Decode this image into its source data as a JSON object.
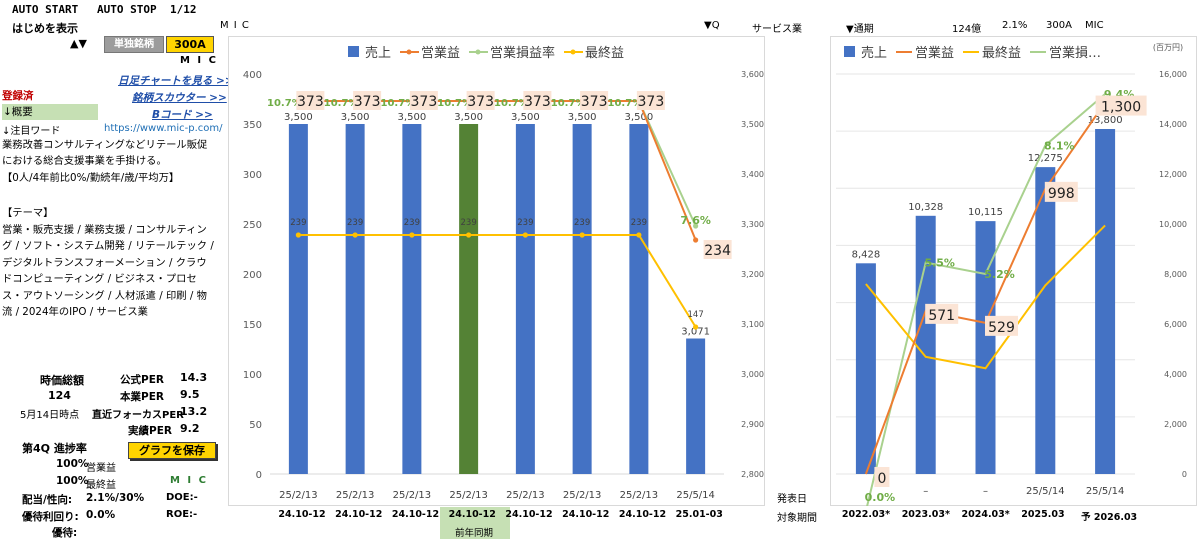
{
  "top": {
    "auto_start": "AUTO START",
    "auto_stop": "AUTO STOP",
    "page_counter": "1/12",
    "show_intro": "はじめを表示",
    "company_code_header": "M I C",
    "updown_arrows": "▲▼",
    "single_stock_label": "単独銘柄",
    "ticker": "300A",
    "company_name": "M I C",
    "q_marker": "▼Q",
    "sector": "サービス業",
    "period_marker": "▼通期",
    "market_cap": "124億",
    "ratio": "2.1%",
    "ticker2": "300A",
    "name2": "MIC"
  },
  "links": {
    "daily_chart": "日足チャートを見る >>",
    "scouter": "銘柄スカウター >>",
    "bcode": "Bコード >>"
  },
  "left": {
    "registered": "登録済",
    "summary": "↓概要",
    "attention": "↓注目ワード",
    "url": "https://www.mic-p.com/",
    "description": "業務改善コンサルティングなどリテール販促における総合支援事業を手掛ける。",
    "employees": "【0人/4年前比0%/勤続年/歳/平均万】",
    "theme_header": "【テーマ】",
    "themes": "営業・販売支援 / 業務支援 / コンサルティング / ソフト・システム開発 / リテールテック / デジタルトランスフォーメーション / クラウドコンピューティング / ビジネス・プロセス・アウトソーシング / 人材派遣 / 印刷 / 物流 / 2024年のIPO / サービス業"
  },
  "metrics": {
    "market_cap_label": "時価総額",
    "market_cap_value": "124",
    "date_label": "5月14日時点",
    "per_official_label": "公式PER",
    "per_official": "14.3",
    "per_core_label": "本業PER",
    "per_core": "9.5",
    "per_forecast_label": "直近フォーカスPER",
    "per_forecast": "13.2",
    "per_actual_label": "実績PER",
    "per_actual": "9.2",
    "progress_label": "第4Q 進捗率",
    "progress_op_value": "100%",
    "progress_op_label": "営業益",
    "progress_net_value": "100%",
    "progress_net_label": "最終益",
    "save_button": "グラフを保存",
    "company_name": "M I C",
    "dividend_label": "配当/性向:",
    "dividend_value": "2.1%/30%",
    "doe": "DOE:-",
    "yutai_label": "優待利回り:",
    "yutai_value": "0.0%",
    "roe": "ROE:-",
    "yutai2_label": "優待:"
  },
  "bottom": {
    "announce_label": "発表日",
    "period_label": "対象期間",
    "prev_year_label": "前年同期"
  },
  "chart_data": [
    {
      "type": "bar",
      "categories": [
        "25/2/13",
        "25/2/13",
        "25/2/13",
        "25/2/13",
        "25/2/13",
        "25/2/13",
        "25/2/13",
        "25/5/14"
      ],
      "periods": [
        "24.10-12",
        "24.10-12",
        "24.10-12",
        "24.10-12",
        "24.10-12",
        "24.10-12",
        "24.10-12",
        "25.01-03"
      ],
      "highlight_index": 3,
      "series": [
        {
          "name": "売上",
          "kind": "bar",
          "axis": "right",
          "color": "#4472c4",
          "values": [
            3500,
            3500,
            3500,
            3500,
            3500,
            3500,
            3500,
            3071
          ],
          "labels": [
            "3,500",
            "3,500",
            "3,500",
            "3,500",
            "3,500",
            "3,500",
            "3,500",
            "3,071"
          ]
        },
        {
          "name": "営業益",
          "kind": "line",
          "axis": "left",
          "color": "#ed7d31",
          "values": [
            373,
            373,
            373,
            373,
            373,
            373,
            373,
            234
          ],
          "labels": [
            "373",
            "373",
            "373",
            "373",
            "373",
            "373",
            "373",
            "234"
          ]
        },
        {
          "name": "営業損益率",
          "kind": "line",
          "axis": "left",
          "color": "#a9d18e",
          "values": [
            373,
            373,
            373,
            373,
            373,
            373,
            373,
            248
          ],
          "labels": [
            "10.7%",
            "10.7%",
            "10.7%",
            "10.7%",
            "10.7%",
            "10.7%",
            "10.7%",
            "7.6%"
          ]
        },
        {
          "name": "最終益",
          "kind": "line",
          "axis": "left",
          "color": "#ffc000",
          "values": [
            239,
            239,
            239,
            239,
            239,
            239,
            239,
            147
          ],
          "labels": [
            "239",
            "239",
            "239",
            "239",
            "239",
            "239",
            "239",
            "147"
          ]
        }
      ],
      "yleft": {
        "min": 0,
        "max": 400,
        "ticks": [
          0,
          50,
          100,
          150,
          200,
          250,
          300,
          350,
          400
        ]
      },
      "yright": {
        "min": 2800,
        "max": 3600,
        "ticks": [
          "2,800",
          "2,900",
          "3,000",
          "3,100",
          "3,200",
          "3,300",
          "3,400",
          "3,500",
          "3,600"
        ]
      },
      "legend": "top"
    },
    {
      "type": "bar",
      "categories": [
        "2022.03*",
        "2023.03*",
        "2024.03*",
        "2025.03",
        "予 2026.03"
      ],
      "announce": [
        "",
        "–",
        "–",
        "25/5/14",
        "25/5/14"
      ],
      "unit": "(百万円)",
      "series": [
        {
          "name": "売上",
          "kind": "bar",
          "axis": "right",
          "color": "#4472c4",
          "values": [
            8428,
            10328,
            10115,
            12275,
            13800
          ],
          "labels": [
            "8,428",
            "10,328",
            "10,115",
            "12,275",
            "13,800"
          ]
        },
        {
          "name": "営業益",
          "kind": "line",
          "axis": "left",
          "color": "#ed7d31",
          "values": [
            0,
            571,
            529,
            998,
            1300
          ],
          "labels": [
            "0",
            "571",
            "529",
            "998",
            "1,300"
          ]
        },
        {
          "name": "最終益",
          "kind": "line",
          "axis": "left",
          "color": "#ffc000",
          "values": [
            665,
            410,
            370,
            660,
            870
          ]
        },
        {
          "name": "営業損益率",
          "kind": "line",
          "axis": "left",
          "color": "#a9d18e",
          "values": [
            -130,
            740,
            700,
            1150,
            1330
          ],
          "labels": [
            "0.0%",
            "5.5%",
            "5.2%",
            "8.1%",
            "9.4%"
          ]
        }
      ],
      "legend_labels": [
        "売上",
        "営業益",
        "最終益",
        "営業損…"
      ],
      "yleft": {
        "min": 0,
        "max": 1400,
        "ticks": [
          "0",
          "200",
          "400",
          "600",
          "800",
          "1,000",
          "1,200",
          "1,400"
        ]
      },
      "yright": {
        "min": 0,
        "max": 16000,
        "ticks": [
          "0",
          "2,000",
          "4,000",
          "6,000",
          "8,000",
          "10,000",
          "12,000",
          "14,000",
          "16,000"
        ]
      },
      "legend": "top"
    }
  ]
}
